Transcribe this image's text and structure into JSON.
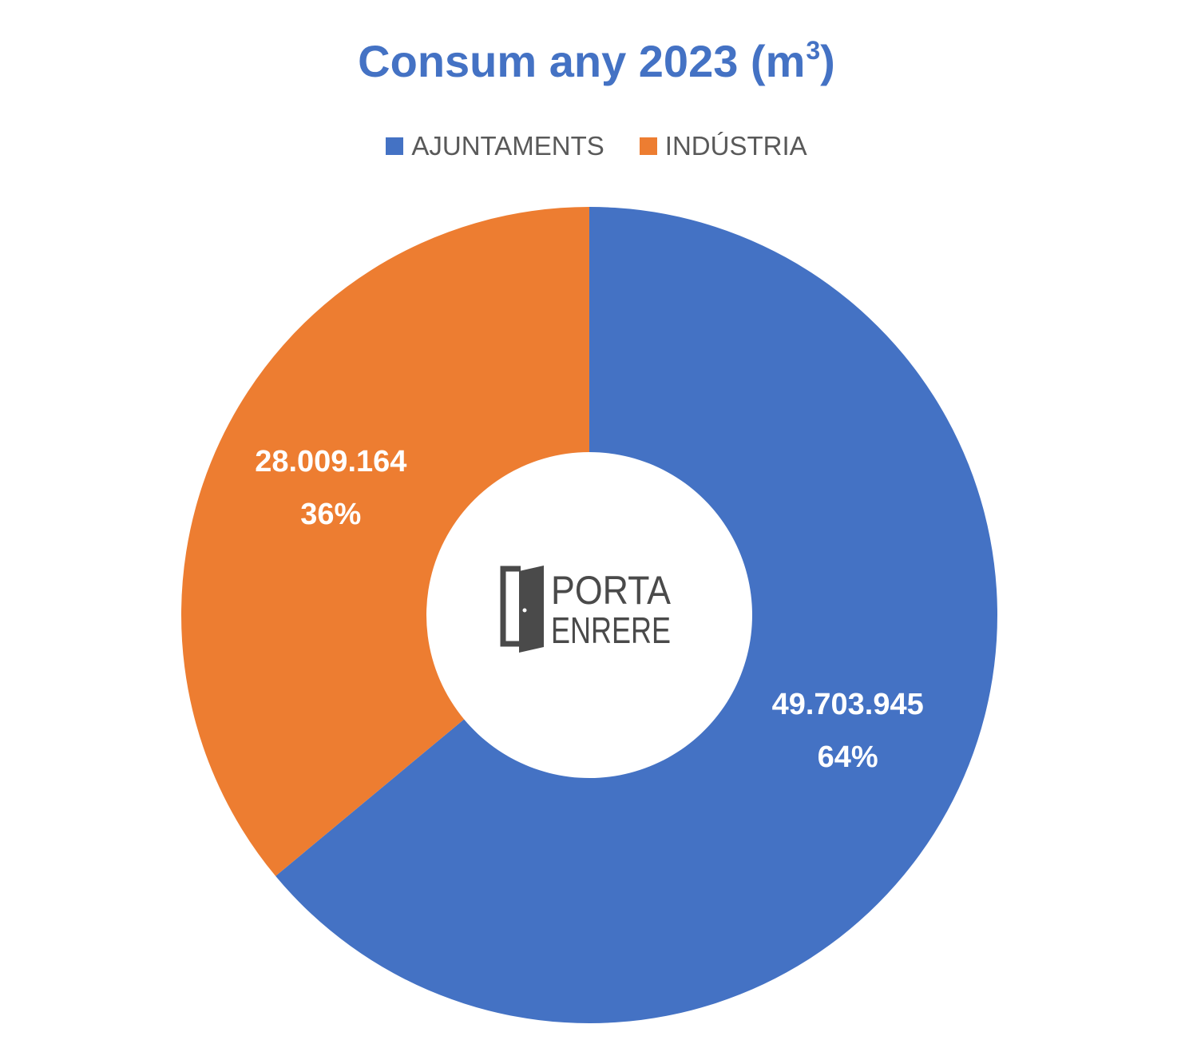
{
  "chart_data": {
    "type": "pie",
    "subtype": "donut",
    "title": "Consum any 2023 (m",
    "title_superscript": "3",
    "title_suffix": ")",
    "legend_position": "top",
    "series": [
      {
        "name": "AJUNTAMENTS",
        "value": 49703945,
        "value_label": "49.703.945",
        "percent_label": "64%",
        "color": "#4472C4"
      },
      {
        "name": "INDÚSTRIA",
        "value": 28009164,
        "value_label": "28.009.164",
        "percent_label": "36%",
        "color": "#ED7D31"
      }
    ]
  },
  "logo": {
    "line1": "PORTA",
    "line2": "ENRERE",
    "color": "#4a4a4a"
  }
}
